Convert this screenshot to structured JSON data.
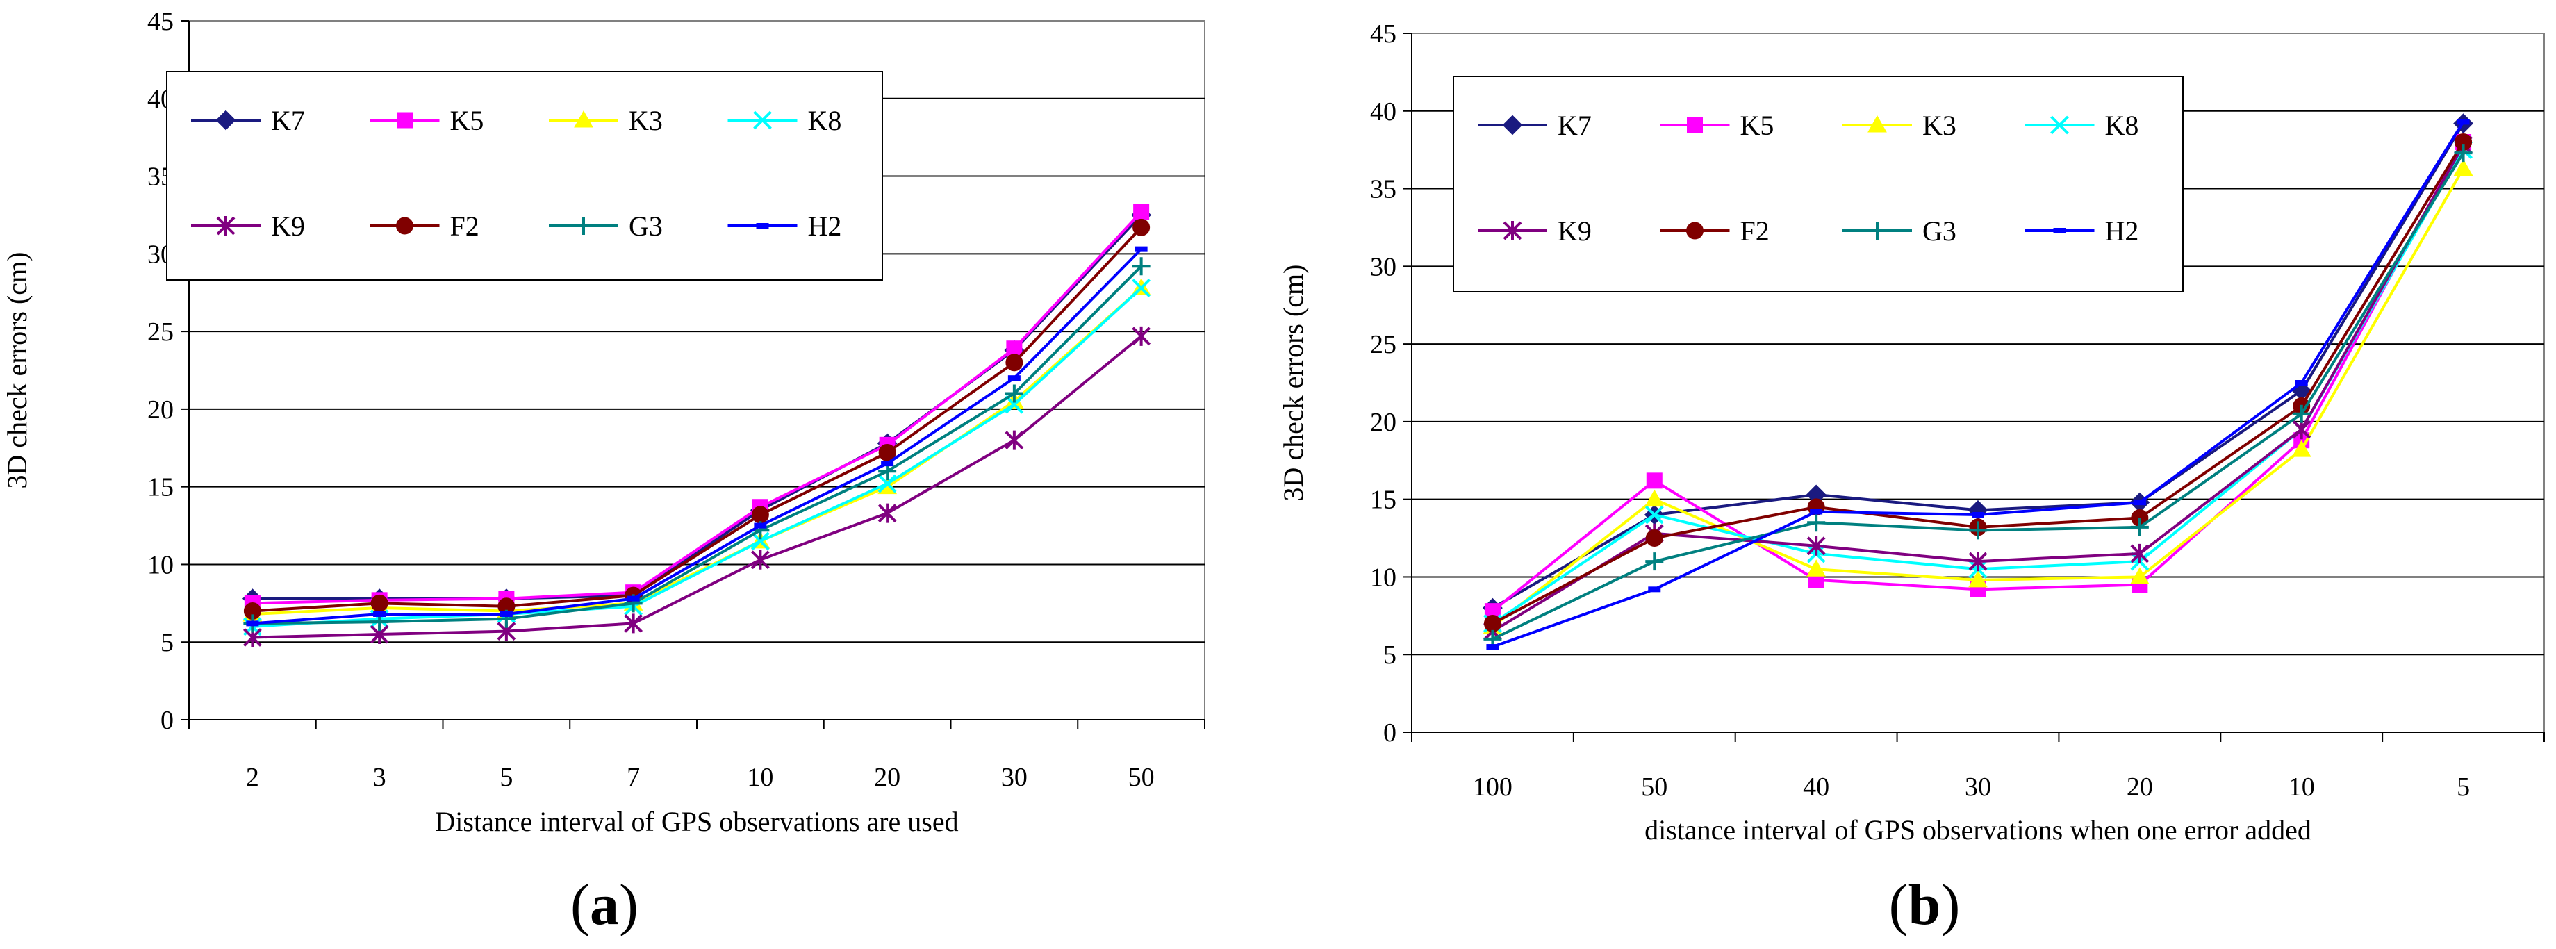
{
  "charts": [
    {
      "panel_label": {
        "open": "(",
        "letter": "a",
        "close": ")"
      },
      "type": "line",
      "categories": [
        "2",
        "3",
        "5",
        "7",
        "10",
        "20",
        "30",
        "50"
      ],
      "xlabel": "Distance interval of GPS observations are used",
      "ylabel": "3D check errors (cm)",
      "ylim": [
        0,
        45
      ],
      "yticks": [
        0,
        5,
        10,
        15,
        20,
        25,
        30,
        35,
        40,
        45
      ],
      "grid": true,
      "legend": "top-left",
      "series": [
        {
          "name": "K7",
          "color": "#1a1a80",
          "marker": "diamond",
          "values": [
            7.8,
            7.8,
            7.8,
            8.0,
            13.5,
            17.8,
            23.8,
            32.5
          ]
        },
        {
          "name": "K5",
          "color": "#ff00ff",
          "marker": "square",
          "values": [
            7.5,
            7.7,
            7.8,
            8.2,
            13.7,
            17.7,
            23.9,
            32.7
          ]
        },
        {
          "name": "K3",
          "color": "#ffff00",
          "marker": "triangle",
          "values": [
            6.8,
            7.2,
            7.0,
            7.5,
            11.5,
            15.0,
            20.5,
            27.8
          ]
        },
        {
          "name": "K8",
          "color": "#00ffff",
          "marker": "x",
          "values": [
            6.0,
            6.5,
            6.8,
            7.3,
            11.5,
            15.2,
            20.3,
            27.8
          ]
        },
        {
          "name": "K9",
          "color": "#800080",
          "marker": "star",
          "values": [
            5.3,
            5.5,
            5.7,
            6.2,
            10.3,
            13.3,
            18.0,
            24.7
          ]
        },
        {
          "name": "F2",
          "color": "#800000",
          "marker": "circle",
          "values": [
            7.0,
            7.5,
            7.3,
            8.0,
            13.2,
            17.2,
            23.0,
            31.7
          ]
        },
        {
          "name": "G3",
          "color": "#008080",
          "marker": "plus",
          "values": [
            6.2,
            6.3,
            6.5,
            7.5,
            12.2,
            16.0,
            21.0,
            29.2
          ]
        },
        {
          "name": "H2",
          "color": "#0000ff",
          "marker": "dash",
          "values": [
            6.2,
            6.8,
            6.8,
            7.8,
            12.5,
            16.5,
            22.0,
            30.3
          ]
        }
      ]
    },
    {
      "panel_label": {
        "open": "(",
        "letter": "b",
        "close": ")"
      },
      "type": "line",
      "categories": [
        "100",
        "50",
        "40",
        "30",
        "20",
        "10",
        "5"
      ],
      "xlabel": "distance interval of GPS observations when one error added",
      "ylabel": "3D check errors (cm)",
      "ylim": [
        0,
        45
      ],
      "yticks": [
        0,
        5,
        10,
        15,
        20,
        25,
        30,
        35,
        40,
        45
      ],
      "grid": true,
      "legend": "top-left",
      "series": [
        {
          "name": "K7",
          "color": "#1a1a80",
          "marker": "diamond",
          "values": [
            8.0,
            14.0,
            15.3,
            14.3,
            14.8,
            22.0,
            39.2
          ]
        },
        {
          "name": "K5",
          "color": "#ff00ff",
          "marker": "square",
          "values": [
            7.8,
            16.2,
            9.8,
            9.2,
            9.5,
            18.8,
            38.0
          ]
        },
        {
          "name": "K3",
          "color": "#ffff00",
          "marker": "triangle",
          "values": [
            6.8,
            15.0,
            10.5,
            9.8,
            10.0,
            18.2,
            36.3
          ]
        },
        {
          "name": "K8",
          "color": "#00ffff",
          "marker": "x",
          "values": [
            7.0,
            14.0,
            11.5,
            10.5,
            11.0,
            19.5,
            37.5
          ]
        },
        {
          "name": "K9",
          "color": "#800080",
          "marker": "star",
          "values": [
            6.5,
            12.8,
            12.0,
            11.0,
            11.5,
            19.5,
            37.8
          ]
        },
        {
          "name": "F2",
          "color": "#800000",
          "marker": "circle",
          "values": [
            7.0,
            12.5,
            14.5,
            13.2,
            13.8,
            21.0,
            38.0
          ]
        },
        {
          "name": "G3",
          "color": "#008080",
          "marker": "plus",
          "values": [
            6.0,
            11.0,
            13.5,
            13.0,
            13.2,
            20.5,
            37.3
          ]
        },
        {
          "name": "H2",
          "color": "#0000ff",
          "marker": "dash",
          "values": [
            5.5,
            9.2,
            14.2,
            14.0,
            14.8,
            22.5,
            39.3
          ]
        }
      ]
    }
  ]
}
